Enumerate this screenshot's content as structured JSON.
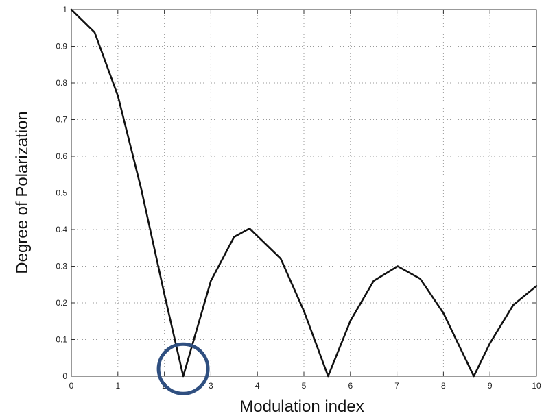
{
  "chart_data": {
    "type": "line",
    "title": "",
    "xlabel": "Modulation index",
    "ylabel": "Degree of Polarization",
    "xlim": [
      0,
      10
    ],
    "ylim": [
      0,
      1
    ],
    "x_ticks": [
      "0",
      "1",
      "2",
      "3",
      "4",
      "5",
      "6",
      "7",
      "8",
      "9",
      "10"
    ],
    "y_ticks": [
      "0",
      "0.1",
      "0.2",
      "0.3",
      "0.4",
      "0.5",
      "0.6",
      "0.7",
      "0.8",
      "0.9",
      "1"
    ],
    "grid": true,
    "legend": "none",
    "line_color": "#111111",
    "series": [
      {
        "x": [
          0,
          0.5,
          1.0,
          1.5,
          2.0,
          2.405,
          3.0,
          3.5,
          3.832,
          4.5,
          5.0,
          5.52,
          6.0,
          6.5,
          7.016,
          7.5,
          8.0,
          8.654,
          9.0,
          9.5,
          10.0
        ],
        "values": [
          1.0,
          0.938,
          0.765,
          0.512,
          0.224,
          0.0,
          0.26,
          0.38,
          0.403,
          0.321,
          0.178,
          0.0,
          0.151,
          0.26,
          0.3,
          0.266,
          0.172,
          0.0,
          0.09,
          0.194,
          0.246
        ]
      }
    ],
    "annotation": {
      "shape": "circle",
      "color": "#2f4f80",
      "center": [
        2.405,
        0.02
      ]
    }
  }
}
